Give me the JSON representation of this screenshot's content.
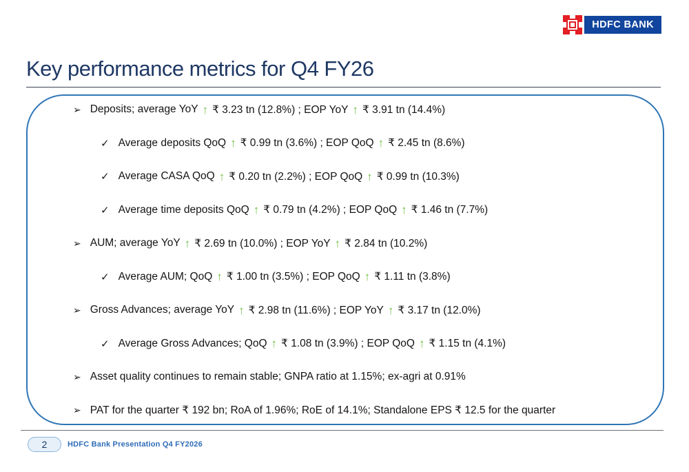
{
  "logo": {
    "brand": "HDFC BANK"
  },
  "title": "Key performance metrics for Q4 FY26",
  "glyphs": {
    "level1_bullet": "➢",
    "level2_bullet": "✓",
    "up_arrow": "↑"
  },
  "bullets": [
    {
      "level": 1,
      "parts": [
        "Deposits; average YoY",
        "₹ 3.23 tn (12.8%) ; EOP YoY",
        "₹ 3.91 tn (14.4%)"
      ]
    },
    {
      "level": 2,
      "parts": [
        "Average deposits QoQ",
        "₹ 0.99 tn (3.6%) ; EOP QoQ",
        "₹ 2.45 tn (8.6%)"
      ]
    },
    {
      "level": 2,
      "parts": [
        "Average CASA QoQ",
        "₹ 0.20 tn (2.2%) ; EOP QoQ",
        "₹ 0.99 tn (10.3%)"
      ]
    },
    {
      "level": 2,
      "parts": [
        "Average time deposits QoQ",
        "₹ 0.79 tn (4.2%) ; EOP QoQ",
        "₹ 1.46 tn (7.7%)"
      ]
    },
    {
      "level": 1,
      "parts": [
        "AUM; average YoY",
        "₹ 2.69 tn (10.0%) ; EOP YoY",
        "₹ 2.84 tn (10.2%)"
      ]
    },
    {
      "level": 2,
      "parts": [
        "Average AUM; QoQ",
        "₹ 1.00 tn (3.5%) ; EOP QoQ",
        "₹ 1.11 tn (3.8%)"
      ]
    },
    {
      "level": 1,
      "parts": [
        "Gross Advances; average YoY",
        "₹ 2.98 tn (11.6%) ; EOP YoY",
        "₹ 3.17 tn (12.0%)"
      ]
    },
    {
      "level": 2,
      "parts": [
        "Average Gross Advances; QoQ",
        "₹ 1.08 tn (3.9%) ; EOP QoQ",
        "₹ 1.15 tn (4.1%)"
      ]
    },
    {
      "level": 1,
      "parts": [
        "Asset quality continues to remain stable; GNPA ratio at 1.15%; ex-agri at 0.91%"
      ]
    },
    {
      "level": 1,
      "parts": [
        "PAT for the quarter ₹ 192 bn; RoA of 1.96%; RoE of 14.1%; Standalone EPS ₹ 12.5 for the quarter"
      ]
    }
  ],
  "footer": {
    "page_number": "2",
    "caption": "HDFC Bank Presentation Q4 FY2026"
  },
  "colors": {
    "title_navy": "#1f3864",
    "box_border_blue": "#2e75b6",
    "arrow_green": "#6fbe44",
    "logo_red": "#e31e24",
    "logo_blue": "#11459e",
    "footer_blue": "#2f6db8"
  }
}
